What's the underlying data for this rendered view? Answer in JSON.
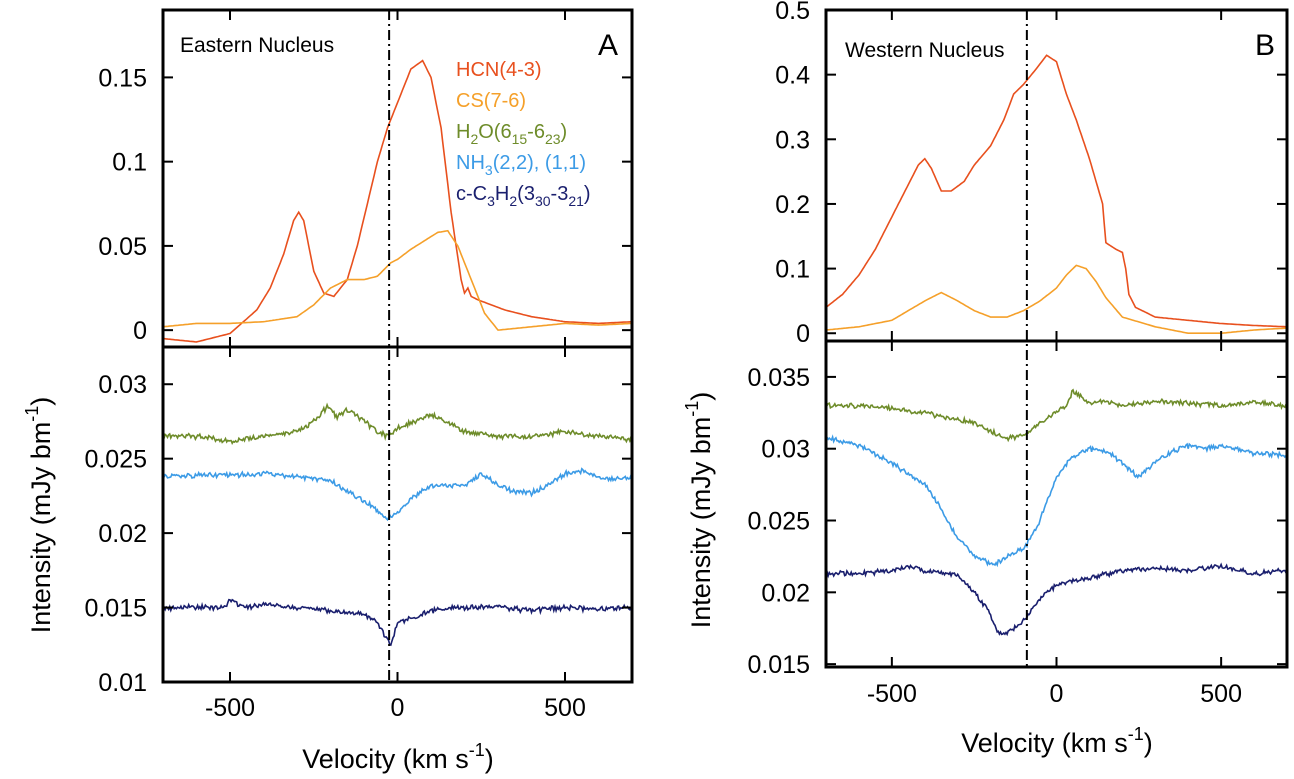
{
  "colors": {
    "HCN": "#e8501e",
    "CS": "#f5a02a",
    "H2O": "#6e8c2a",
    "NH3": "#3c9be6",
    "C3H2": "#1a1f6e"
  },
  "chart_data": [
    {
      "type": "line",
      "panel": "A",
      "annotation": "Eastern Nucleus",
      "xlabel": "Velocity (km s^-1)",
      "ylabel": "Intensity (mJy bm^-1)",
      "xlim": [
        -700,
        700
      ],
      "x_ticks": [
        "-500",
        "0",
        "500"
      ],
      "x_tick_values": [
        -500,
        0,
        500
      ],
      "systemic_velocity_line": -25,
      "legend": [
        {
          "key": "HCN",
          "label": "HCN(4-3)",
          "main": "HCN(4-3)"
        },
        {
          "key": "CS",
          "label": "CS(7-6)",
          "main": "CS(7-6)"
        },
        {
          "key": "H2O",
          "label": "H2O(6_15-6_23)",
          "main": "H",
          "sub1": "2",
          "mid": "O(6",
          "sub2": "15",
          "mid2": "-6",
          "sub3": "23",
          "end": ")"
        },
        {
          "key": "NH3",
          "label": "NH3(2,2), (1,1)",
          "main": "NH",
          "sub1": "3",
          "mid": "(2,2), (1,1)"
        },
        {
          "key": "C3H2",
          "label": "c-C3H2(3_30-3_21)",
          "main": "c-C",
          "sub1": "3",
          "mid": "H",
          "sub2": "2",
          "mid2": "(3",
          "sub3": "30",
          "end": "-3",
          "sub4": "21",
          "end2": ")"
        }
      ],
      "top": {
        "ylim": [
          -0.01,
          0.19
        ],
        "y_ticks": [
          "0",
          "0.05",
          "0.1",
          "0.15"
        ],
        "y_tick_values": [
          0,
          0.05,
          0.1,
          0.15
        ],
        "series": [
          {
            "name": "HCN(4-3)",
            "key": "HCN",
            "x": [
              -700,
              -600,
              -500,
              -420,
              -380,
              -340,
              -310,
              -295,
              -280,
              -250,
              -220,
              -190,
              -150,
              -120,
              -90,
              -60,
              -30,
              -10,
              10,
              40,
              75,
              100,
              130,
              160,
              190,
              200,
              210,
              220,
              240,
              280,
              320,
              400,
              500,
              600,
              700
            ],
            "y": [
              -0.005,
              -0.007,
              -0.002,
              0.012,
              0.025,
              0.045,
              0.065,
              0.07,
              0.065,
              0.035,
              0.022,
              0.02,
              0.03,
              0.05,
              0.075,
              0.1,
              0.12,
              0.13,
              0.14,
              0.155,
              0.16,
              0.15,
              0.12,
              0.07,
              0.03,
              0.022,
              0.025,
              0.02,
              0.018,
              0.015,
              0.012,
              0.008,
              0.005,
              0.004,
              0.005
            ]
          },
          {
            "name": "CS(7-6)",
            "key": "CS",
            "x": [
              -700,
              -600,
              -500,
              -400,
              -300,
              -250,
              -200,
              -150,
              -100,
              -60,
              -40,
              -20,
              0,
              40,
              80,
              120,
              150,
              180,
              220,
              260,
              300,
              400,
              500,
              600,
              700
            ],
            "y": [
              0.002,
              0.004,
              0.004,
              0.005,
              0.008,
              0.015,
              0.025,
              0.03,
              0.03,
              0.032,
              0.036,
              0.04,
              0.042,
              0.048,
              0.053,
              0.058,
              0.059,
              0.05,
              0.03,
              0.01,
              0.0,
              0.002,
              0.004,
              0.003,
              0.004
            ]
          }
        ]
      },
      "bottom": {
        "ylim": [
          0.01,
          0.0325
        ],
        "y_ticks": [
          "0.01",
          "0.015",
          "0.02",
          "0.025",
          "0.03"
        ],
        "y_tick_values": [
          0.01,
          0.015,
          0.02,
          0.025,
          0.03
        ],
        "series": [
          {
            "name": "H2O(6_15-6_23)",
            "key": "H2O",
            "x": [
              -700,
              -600,
              -500,
              -400,
              -300,
              -250,
              -210,
              -180,
              -150,
              -100,
              -60,
              -30,
              0,
              50,
              100,
              200,
              300,
              400,
              500,
              600,
              700
            ],
            "y": [
              0.0265,
              0.0265,
              0.0262,
              0.0265,
              0.0268,
              0.0275,
              0.0285,
              0.0278,
              0.0283,
              0.0275,
              0.0268,
              0.0265,
              0.027,
              0.0275,
              0.028,
              0.0268,
              0.0265,
              0.0265,
              0.0268,
              0.0265,
              0.0263
            ]
          },
          {
            "name": "NH3(2,2), (1,1)",
            "key": "NH3",
            "x": [
              -700,
              -600,
              -500,
              -400,
              -300,
              -200,
              -150,
              -100,
              -60,
              -30,
              0,
              50,
              100,
              200,
              250,
              300,
              350,
              400,
              450,
              500,
              550,
              600,
              650,
              700
            ],
            "y": [
              0.0238,
              0.0239,
              0.0239,
              0.024,
              0.0238,
              0.0235,
              0.0228,
              0.0222,
              0.0215,
              0.021,
              0.0213,
              0.0225,
              0.0232,
              0.0232,
              0.024,
              0.0232,
              0.0228,
              0.0227,
              0.0232,
              0.024,
              0.0242,
              0.0237,
              0.0236,
              0.0238
            ]
          },
          {
            "name": "c-C3H2(3_30-3_21)",
            "key": "C3H2",
            "x": [
              -700,
              -600,
              -520,
              -500,
              -450,
              -400,
              -300,
              -200,
              -100,
              -60,
              -40,
              -20,
              0,
              50,
              100,
              200,
              300,
              400,
              500,
              600,
              700
            ],
            "y": [
              0.015,
              0.015,
              0.015,
              0.0155,
              0.015,
              0.0152,
              0.015,
              0.0148,
              0.0145,
              0.014,
              0.0132,
              0.0125,
              0.014,
              0.0143,
              0.0148,
              0.015,
              0.015,
              0.0148,
              0.015,
              0.0149,
              0.015
            ]
          }
        ]
      }
    },
    {
      "type": "line",
      "panel": "B",
      "annotation": "Western Nucleus",
      "xlabel": "Velocity (km s^-1)",
      "ylabel": "Intensity (mJy bm^-1)",
      "xlim": [
        -700,
        700
      ],
      "x_ticks": [
        "-500",
        "0",
        "500"
      ],
      "x_tick_values": [
        -500,
        0,
        500
      ],
      "systemic_velocity_line": -90,
      "top": {
        "ylim": [
          -0.012,
          0.5
        ],
        "y_ticks": [
          "0",
          "0.1",
          "0.2",
          "0.3",
          "0.4",
          "0.5"
        ],
        "y_tick_values": [
          0,
          0.1,
          0.2,
          0.3,
          0.4,
          0.5
        ],
        "series": [
          {
            "name": "HCN(4-3)",
            "key": "HCN",
            "x": [
              -700,
              -650,
              -600,
              -550,
              -500,
              -450,
              -420,
              -400,
              -380,
              -350,
              -320,
              -280,
              -250,
              -200,
              -160,
              -130,
              -100,
              -60,
              -30,
              0,
              30,
              60,
              100,
              140,
              150,
              180,
              200,
              210,
              220,
              240,
              300,
              400,
              500,
              600,
              700
            ],
            "y": [
              0.04,
              0.06,
              0.09,
              0.13,
              0.18,
              0.23,
              0.26,
              0.27,
              0.255,
              0.22,
              0.22,
              0.235,
              0.26,
              0.29,
              0.33,
              0.37,
              0.385,
              0.41,
              0.43,
              0.42,
              0.37,
              0.33,
              0.27,
              0.2,
              0.14,
              0.13,
              0.125,
              0.1,
              0.06,
              0.04,
              0.025,
              0.02,
              0.015,
              0.012,
              0.01
            ]
          },
          {
            "name": "CS(7-6)",
            "key": "CS",
            "x": [
              -700,
              -600,
              -500,
              -450,
              -400,
              -350,
              -300,
              -250,
              -200,
              -150,
              -100,
              -50,
              0,
              30,
              60,
              90,
              120,
              150,
              200,
              300,
              400,
              500,
              600,
              700
            ],
            "y": [
              0.005,
              0.01,
              0.02,
              0.035,
              0.05,
              0.063,
              0.05,
              0.035,
              0.025,
              0.025,
              0.035,
              0.05,
              0.07,
              0.09,
              0.105,
              0.1,
              0.08,
              0.055,
              0.025,
              0.01,
              0.0,
              0.0,
              0.005,
              0.008
            ]
          }
        ]
      },
      "bottom": {
        "ylim": [
          0.0148,
          0.0375
        ],
        "y_ticks": [
          "0.015",
          "0.02",
          "0.025",
          "0.03",
          "0.035"
        ],
        "y_tick_values": [
          0.015,
          0.02,
          0.025,
          0.03,
          0.035
        ],
        "series": [
          {
            "name": "H2O(6_15-6_23)",
            "key": "H2O",
            "x": [
              -700,
              -600,
              -500,
              -400,
              -300,
              -250,
              -200,
              -150,
              -100,
              -80,
              -50,
              0,
              30,
              50,
              80,
              100,
              150,
              200,
              300,
              400,
              500,
              600,
              700
            ],
            "y": [
              0.033,
              0.033,
              0.0328,
              0.0325,
              0.032,
              0.0318,
              0.0312,
              0.0307,
              0.031,
              0.0312,
              0.0318,
              0.0325,
              0.033,
              0.034,
              0.0335,
              0.0332,
              0.0333,
              0.033,
              0.0333,
              0.0332,
              0.033,
              0.0332,
              0.033
            ]
          },
          {
            "name": "NH3(2,2), (1,1)",
            "key": "NH3",
            "x": [
              -700,
              -650,
              -600,
              -500,
              -400,
              -350,
              -300,
              -250,
              -200,
              -180,
              -150,
              -100,
              -60,
              -30,
              0,
              50,
              100,
              150,
              200,
              250,
              300,
              350,
              400,
              450,
              500,
              600,
              700
            ],
            "y": [
              0.0308,
              0.0305,
              0.0302,
              0.029,
              0.0275,
              0.0258,
              0.0238,
              0.0225,
              0.022,
              0.022,
              0.0225,
              0.023,
              0.0245,
              0.0263,
              0.028,
              0.0295,
              0.03,
              0.0298,
              0.029,
              0.028,
              0.029,
              0.0298,
              0.0302,
              0.03,
              0.0302,
              0.0297,
              0.0295
            ]
          },
          {
            "name": "c-C3H2(3_30-3_21)",
            "key": "C3H2",
            "x": [
              -700,
              -600,
              -500,
              -450,
              -400,
              -300,
              -250,
              -200,
              -180,
              -150,
              -100,
              -60,
              -30,
              0,
              50,
              100,
              200,
              300,
              400,
              500,
              600,
              700
            ],
            "y": [
              0.0213,
              0.0213,
              0.0215,
              0.0218,
              0.0215,
              0.0212,
              0.02,
              0.0185,
              0.0172,
              0.0172,
              0.018,
              0.0192,
              0.02,
              0.0205,
              0.0208,
              0.021,
              0.0215,
              0.0217,
              0.0215,
              0.0218,
              0.0213,
              0.0215
            ]
          }
        ]
      }
    }
  ]
}
